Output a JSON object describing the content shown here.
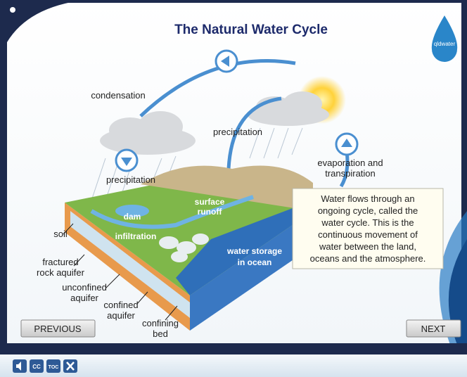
{
  "header": {
    "title": "The Natural Water Cycle",
    "logo": "qldwater"
  },
  "diagram": {
    "condensation": "condensation",
    "precipitation_left": "precipitation",
    "precipitation_right": "precipitation",
    "evaporation": [
      "evaporation and",
      "transpiration"
    ],
    "dam": "dam",
    "surface_runoff": [
      "surface",
      "runoff"
    ],
    "infiltration": "infiltration",
    "ocean": [
      "water storage",
      "in ocean"
    ],
    "soil": "soil",
    "fractured_rock_aquifer": [
      "fractured",
      "rock aquifer"
    ],
    "unconfined_aquifer": [
      "unconfined",
      "aquifer"
    ],
    "confined_aquifer": [
      "confined",
      "aquifer"
    ],
    "confining_bed": [
      "confining",
      "bed"
    ]
  },
  "info_box": {
    "lines": [
      "Water flows through an",
      "ongoing cycle, called the",
      "water cycle. This is the",
      "continuous movement of",
      "water between the land,",
      "oceans and the atmosphere."
    ]
  },
  "navigation": {
    "previous": "PREVIOUS",
    "next": "NEXT"
  },
  "toolbar": {
    "closed_captions": "CC",
    "table_of_contents": "TOC"
  }
}
